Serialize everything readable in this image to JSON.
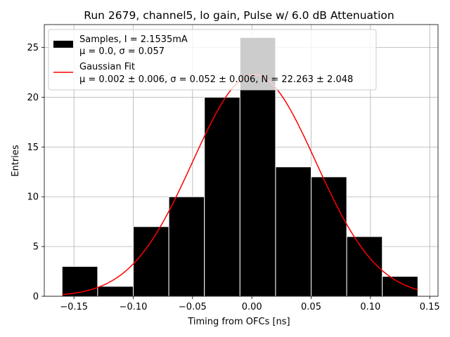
{
  "chart_data": {
    "type": "bar",
    "title": "Run 2679, channel5, lo gain, Pulse w/ 6.0 dB Attenuation",
    "xlabel": "Timing from OFCs [ns]",
    "ylabel": "Entries",
    "xlim": [
      -0.175,
      0.157
    ],
    "ylim": [
      0,
      27.3
    ],
    "grid": true,
    "xticks": [
      -0.15,
      -0.1,
      -0.05,
      0.0,
      0.05,
      0.1,
      0.15
    ],
    "xtick_labels": [
      "−0.15",
      "−0.10",
      "−0.05",
      "0.00",
      "0.05",
      "0.10",
      "0.15"
    ],
    "yticks": [
      0,
      5,
      10,
      15,
      20,
      25
    ],
    "ytick_labels": [
      "0",
      "5",
      "10",
      "15",
      "20",
      "25"
    ],
    "histogram": {
      "name": "Samples, I = 2.1535mA",
      "stats": "μ = 0.0, σ = 0.057",
      "bin_edges": [
        -0.16,
        -0.13,
        -0.1,
        -0.07,
        -0.04,
        -0.01,
        0.02,
        0.05,
        0.08,
        0.11,
        0.14
      ],
      "counts": [
        3,
        1,
        7,
        10,
        20,
        26,
        13,
        12,
        6,
        2
      ],
      "color": "#000000"
    },
    "fit": {
      "name": "Gaussian Fit",
      "stats": "μ = 0.002 ± 0.006, σ = 0.052 ± 0.006, N = 22.263 ± 2.048",
      "mu": 0.002,
      "sigma": 0.052,
      "N": 22.263,
      "x_range": [
        -0.16,
        0.14
      ],
      "color": "#ff0000"
    },
    "legend_placement": "top-left"
  }
}
